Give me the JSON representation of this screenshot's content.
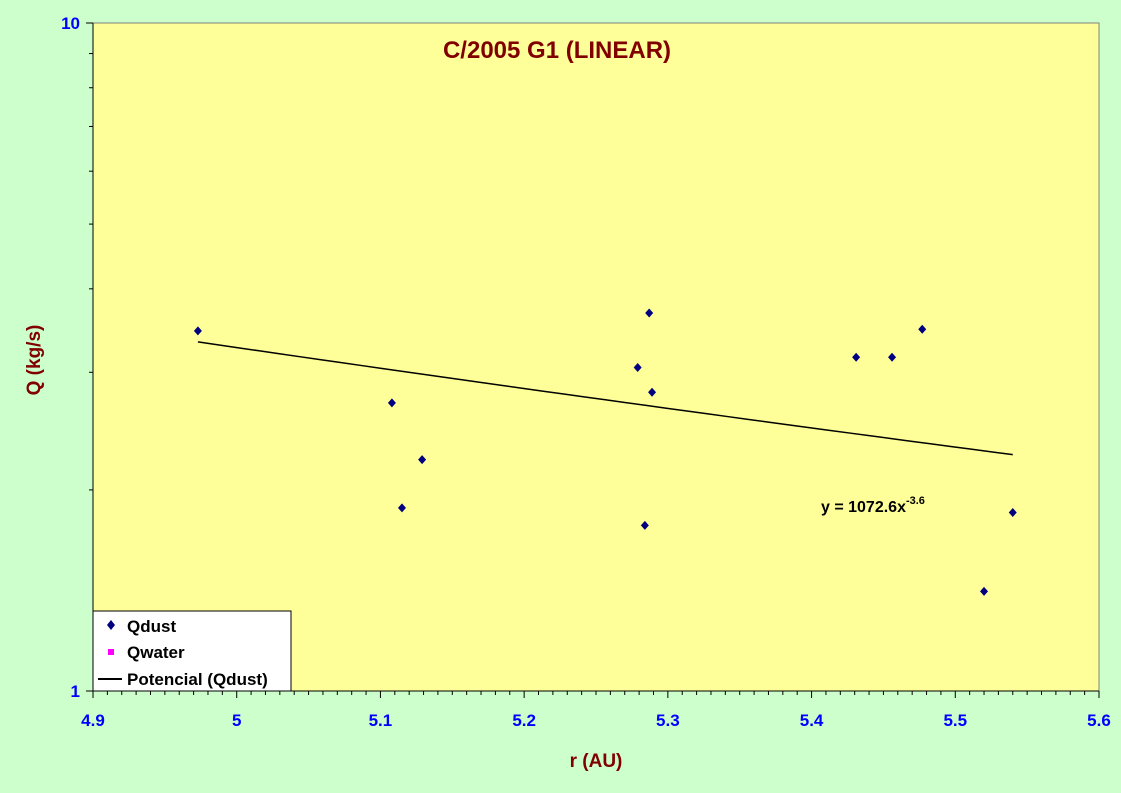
{
  "chart_data": {
    "type": "scatter",
    "title": "C/2005 G1 (LINEAR)",
    "xlabel": "r (AU)",
    "ylabel": "Q (kg/s)",
    "xlim": [
      4.9,
      5.6
    ],
    "ylim": [
      1,
      10
    ],
    "y_scale": "log",
    "x_ticks": [
      "4.9",
      "5",
      "5.1",
      "5.2",
      "5.3",
      "5.4",
      "5.5",
      "5.6"
    ],
    "y_ticks": [
      "1",
      "10"
    ],
    "grid": false,
    "legend_position": "bottom-left",
    "colors": {
      "outer_background": "#ccffcc",
      "plot_background": "#ffff99",
      "title": "#800000",
      "axis_title": "#800000",
      "tick_labels": "#0000ff",
      "qdust": "#000080",
      "qwater": "#ff00ff",
      "trend": "#000000"
    },
    "series": [
      {
        "name": "Qdust",
        "marker": "diamond",
        "points": [
          {
            "x": 4.973,
            "y": 3.46
          },
          {
            "x": 5.108,
            "y": 2.7
          },
          {
            "x": 5.115,
            "y": 1.88
          },
          {
            "x": 5.129,
            "y": 2.22
          },
          {
            "x": 5.279,
            "y": 3.05
          },
          {
            "x": 5.284,
            "y": 1.77
          },
          {
            "x": 5.287,
            "y": 3.68
          },
          {
            "x": 5.289,
            "y": 2.8
          },
          {
            "x": 5.431,
            "y": 3.16
          },
          {
            "x": 5.456,
            "y": 3.16
          },
          {
            "x": 5.477,
            "y": 3.48
          },
          {
            "x": 5.52,
            "y": 1.41
          },
          {
            "x": 5.54,
            "y": 1.85
          }
        ]
      },
      {
        "name": "Qwater",
        "marker": "square",
        "points": []
      },
      {
        "name": "Potencial (Qdust)",
        "type": "trendline",
        "equation": "y = 1072.6x",
        "exponent": "-3.6",
        "coefficient": 1072.6,
        "power": -3.6,
        "x_range": [
          4.973,
          5.54
        ]
      }
    ]
  }
}
